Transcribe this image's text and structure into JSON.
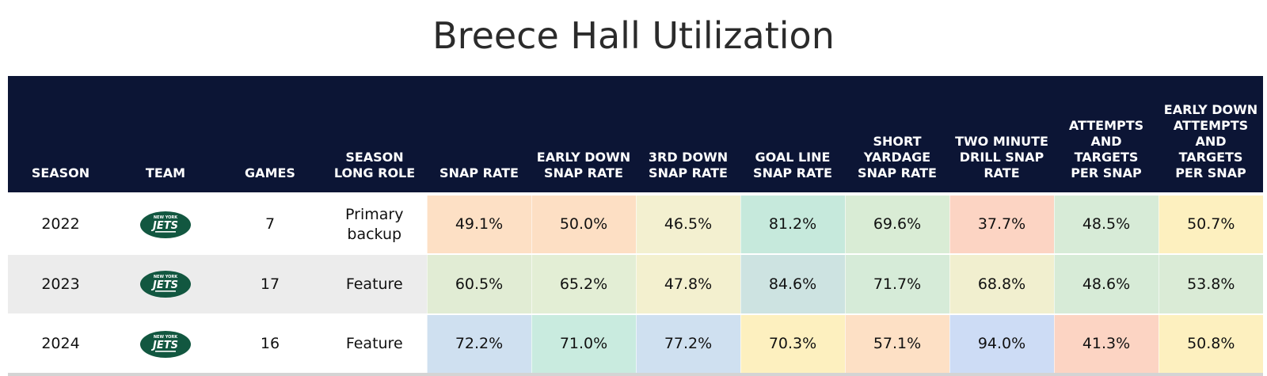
{
  "title": "Breece Hall Utilization",
  "headers": {
    "season": "SEASON",
    "team": "TEAM",
    "games": "GAMES",
    "role": "SEASON LONG ROLE",
    "snap_rate": "SNAP RATE",
    "early_down_snap_rate": "EARLY DOWN SNAP RATE",
    "third_down_snap_rate": "3RD DOWN SNAP RATE",
    "goal_line_snap_rate": "GOAL LINE SNAP RATE",
    "short_yardage_snap_rate": "SHORT YARDAGE SNAP RATE",
    "two_minute_drill_snap_rate": "TWO MINUTE DRILL SNAP RATE",
    "attempts_targets_per_snap": "ATTEMPTS AND TARGETS PER SNAP",
    "early_down_attempts_targets_per_snap": "EARLY DOWN ATTEMPTS AND TARGETS PER SNAP"
  },
  "team_logo": {
    "icon": "new-york-jets-logo",
    "top_text": "NEW YORK",
    "main_text": "JETS",
    "color": "#125740"
  },
  "rows": [
    {
      "season": "2022",
      "games": "7",
      "role": "Primary backup",
      "cells": [
        {
          "value": "49.1%",
          "color": "#fde0c5"
        },
        {
          "value": "50.0%",
          "color": "#fddfc4"
        },
        {
          "value": "46.5%",
          "color": "#f3f0d0"
        },
        {
          "value": "81.2%",
          "color": "#c6e9dc"
        },
        {
          "value": "69.6%",
          "color": "#d9ecd5"
        },
        {
          "value": "37.7%",
          "color": "#fcd4c3"
        },
        {
          "value": "48.5%",
          "color": "#d7ebd7"
        },
        {
          "value": "50.7%",
          "color": "#fdf0bf"
        }
      ]
    },
    {
      "season": "2023",
      "games": "17",
      "role": "Feature",
      "cells": [
        {
          "value": "60.5%",
          "color": "#e1ecd4"
        },
        {
          "value": "65.2%",
          "color": "#e3eed5"
        },
        {
          "value": "47.8%",
          "color": "#f3f0cf"
        },
        {
          "value": "84.6%",
          "color": "#cde3e1"
        },
        {
          "value": "71.7%",
          "color": "#d6ebd8"
        },
        {
          "value": "68.8%",
          "color": "#f1efcf"
        },
        {
          "value": "48.6%",
          "color": "#d7ebd7"
        },
        {
          "value": "53.8%",
          "color": "#daebd6"
        }
      ]
    },
    {
      "season": "2024",
      "games": "16",
      "role": "Feature",
      "cells": [
        {
          "value": "72.2%",
          "color": "#cfe0f0"
        },
        {
          "value": "71.0%",
          "color": "#c9ebdf"
        },
        {
          "value": "77.2%",
          "color": "#cfe0f0"
        },
        {
          "value": "70.3%",
          "color": "#fdf0bf"
        },
        {
          "value": "57.1%",
          "color": "#fde0c5"
        },
        {
          "value": "94.0%",
          "color": "#cddcf5"
        },
        {
          "value": "41.3%",
          "color": "#fcd4c3"
        },
        {
          "value": "50.8%",
          "color": "#fdf0bf"
        }
      ]
    }
  ]
}
